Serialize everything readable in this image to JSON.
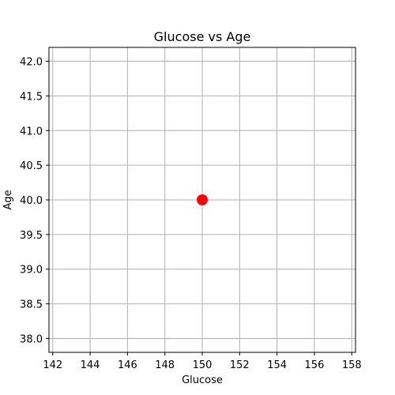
{
  "chart_data": {
    "type": "scatter",
    "title": "Glucose vs Age",
    "xlabel": "Glucose",
    "ylabel": "Age",
    "xlim": [
      141.8,
      158.2
    ],
    "ylim": [
      37.8,
      42.2
    ],
    "xticks": [
      142,
      144,
      146,
      148,
      150,
      152,
      154,
      156,
      158
    ],
    "yticks": [
      38.0,
      38.5,
      39.0,
      39.5,
      40.0,
      40.5,
      41.0,
      41.5,
      42.0
    ],
    "xtick_labels": [
      "142",
      "144",
      "146",
      "148",
      "150",
      "152",
      "154",
      "156",
      "158"
    ],
    "ytick_labels": [
      "38.0",
      "38.5",
      "39.0",
      "39.5",
      "40.0",
      "40.5",
      "41.0",
      "41.5",
      "42.0"
    ],
    "grid": true,
    "points": [
      {
        "x": 150,
        "y": 40.0
      }
    ],
    "colors": {
      "point": "#ff0000",
      "grid": "#b0b0b0",
      "axes": "#000000"
    }
  }
}
